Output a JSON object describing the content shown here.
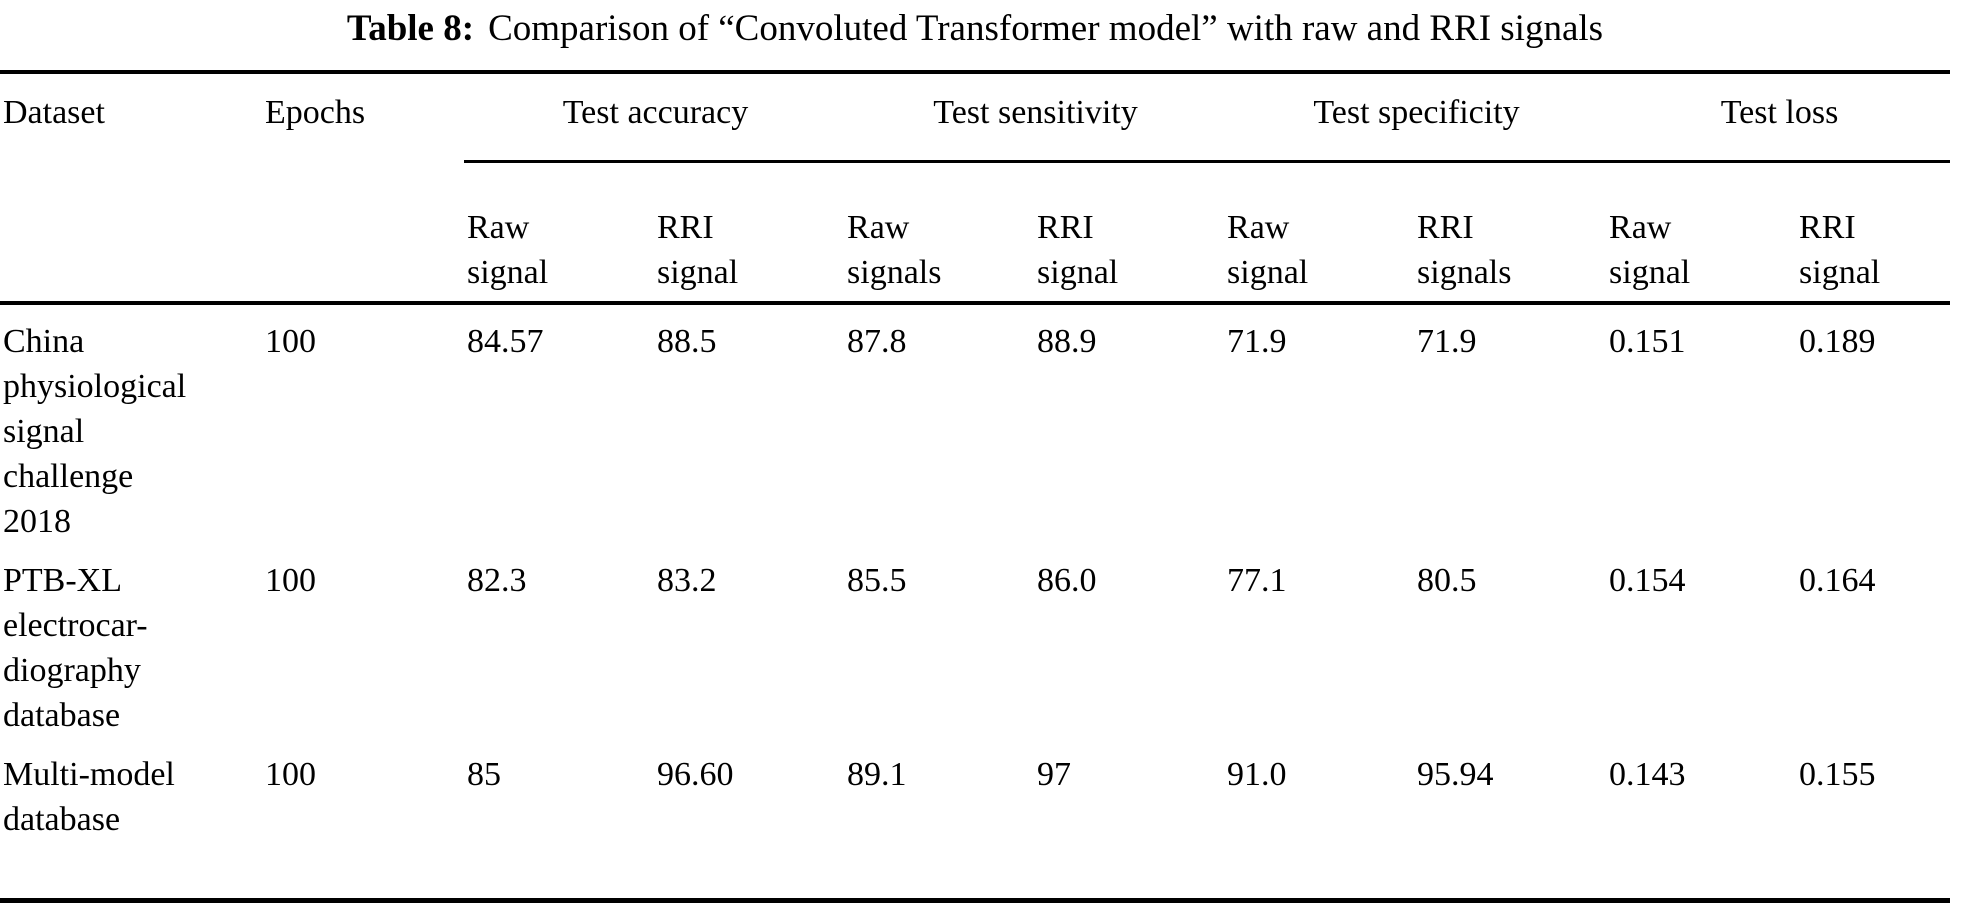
{
  "caption": {
    "label": "Table 8:",
    "title": "Comparison of “Convoluted Transformer model” with raw and RRI signals"
  },
  "table": {
    "header": {
      "dataset": "Dataset",
      "epochs": "Epochs",
      "groups": [
        {
          "label": "Test accuracy"
        },
        {
          "label": "Test sensitivity"
        },
        {
          "label": "Test specificity"
        },
        {
          "label": "Test loss"
        }
      ],
      "subheaders": [
        "Raw\nsignal",
        "RRI\nsignal",
        "Raw\nsignals",
        "RRI\nsignal",
        "Raw\nsignal",
        "RRI\nsignals",
        "Raw\nsignal",
        "RRI\nsignal"
      ]
    },
    "rows": [
      {
        "dataset": "China\nphysiological\nsignal\nchallenge\n2018",
        "epochs": "100",
        "values": [
          "84.57",
          "88.5",
          "87.8",
          "88.9",
          "71.9",
          "71.9",
          "0.151",
          "0.189"
        ]
      },
      {
        "dataset": "PTB-XL\nelectrocar-\ndiography\ndatabase",
        "epochs": "100",
        "values": [
          "82.3",
          "83.2",
          "85.5",
          "86.0",
          "77.1",
          "80.5",
          "0.154",
          "0.164"
        ]
      },
      {
        "dataset": "Multi-model\ndatabase",
        "epochs": "100",
        "values": [
          "85",
          "96.60",
          "89.1",
          "97",
          "91.0",
          "95.94",
          "0.143",
          "0.155"
        ]
      }
    ]
  },
  "colors": {
    "text": "#000000",
    "background": "#ffffff",
    "rule": "#000000"
  }
}
